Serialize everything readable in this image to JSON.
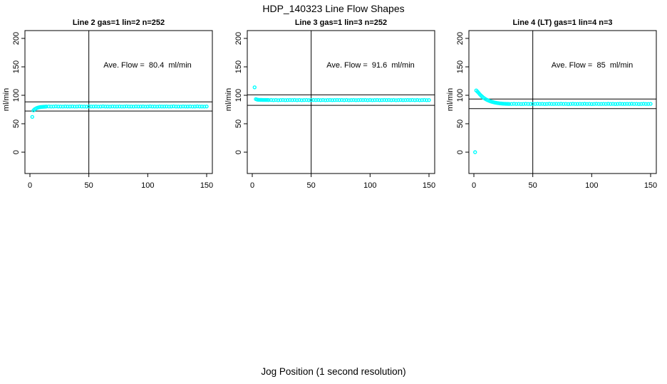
{
  "page": {
    "title": "HDP_140323  Line Flow Shapes",
    "xlabel": "Jog Position (1 second resolution)"
  },
  "colors": {
    "points": "#00FFFF",
    "axis": "#000000",
    "background": "#FFFFFF"
  },
  "chart_data": [
    {
      "type": "scatter",
      "title": "Line 2 gas=1 lin=2 n=252",
      "ylabel": "ml/min",
      "annotation": "Ave. Flow =  80.4  ml/min",
      "ave_flow_ml_min": 80.4,
      "x_ticks": [
        0,
        50,
        100,
        150
      ],
      "y_ticks": [
        0,
        50,
        100,
        150,
        200
      ],
      "xlim": [
        -4,
        155
      ],
      "ylim": [
        -37,
        212
      ],
      "vline_x": 50,
      "hlines": [
        88.4,
        72.4
      ],
      "points": [
        [
          2,
          62
        ],
        [
          3,
          73.5
        ],
        [
          4,
          75.5
        ],
        [
          5,
          76.8
        ],
        [
          6,
          77.8
        ],
        [
          7,
          78.5
        ],
        [
          8,
          79
        ],
        [
          9,
          79.4
        ],
        [
          10,
          79.6
        ],
        [
          11,
          79.8
        ],
        [
          12,
          79.9
        ],
        [
          13,
          80
        ],
        [
          14,
          80.2
        ],
        [
          16,
          80.4
        ],
        [
          18,
          80.1
        ],
        [
          20,
          80.3
        ],
        [
          22,
          80.5
        ],
        [
          24,
          80.2
        ],
        [
          26,
          80.3
        ],
        [
          28,
          80.1
        ],
        [
          30,
          80.4
        ],
        [
          32,
          80.2
        ],
        [
          34,
          80.2
        ],
        [
          36,
          80.4
        ],
        [
          38,
          80.1
        ],
        [
          40,
          80.3
        ],
        [
          42,
          80.5
        ],
        [
          44,
          80.2
        ],
        [
          46,
          80.3
        ],
        [
          48,
          80.1
        ],
        [
          50,
          80.4
        ],
        [
          52,
          80.2
        ],
        [
          54,
          80.2
        ],
        [
          56,
          80.4
        ],
        [
          58,
          80.1
        ],
        [
          60,
          80.3
        ],
        [
          62,
          80.5
        ],
        [
          64,
          80.2
        ],
        [
          66,
          80.3
        ],
        [
          68,
          80.1
        ],
        [
          70,
          80.4
        ],
        [
          72,
          80.2
        ],
        [
          74,
          80.2
        ],
        [
          76,
          80.4
        ],
        [
          78,
          80.1
        ],
        [
          80,
          80.3
        ],
        [
          82,
          80.5
        ],
        [
          84,
          80.2
        ],
        [
          86,
          80.3
        ],
        [
          88,
          80.1
        ],
        [
          90,
          80.4
        ],
        [
          92,
          80.2
        ],
        [
          94,
          80.2
        ],
        [
          96,
          80.4
        ],
        [
          98,
          80.1
        ],
        [
          100,
          80.3
        ],
        [
          102,
          80.5
        ],
        [
          104,
          80.2
        ],
        [
          106,
          80.3
        ],
        [
          108,
          80.1
        ],
        [
          110,
          80.4
        ],
        [
          112,
          80.2
        ],
        [
          114,
          80.2
        ],
        [
          116,
          80.4
        ],
        [
          118,
          80.1
        ],
        [
          120,
          80.3
        ],
        [
          122,
          80.5
        ],
        [
          124,
          80.2
        ],
        [
          126,
          80.3
        ],
        [
          128,
          80.1
        ],
        [
          130,
          80.4
        ],
        [
          132,
          80.2
        ],
        [
          134,
          80.2
        ],
        [
          136,
          80.4
        ],
        [
          138,
          80.1
        ],
        [
          140,
          80.3
        ],
        [
          142,
          80.5
        ],
        [
          144,
          80.2
        ],
        [
          146,
          80.3
        ],
        [
          148,
          80.1
        ],
        [
          150,
          80.4
        ]
      ]
    },
    {
      "type": "scatter",
      "title": "Line 3 gas=1 lin=3 n=252",
      "ylabel": "ml/min",
      "annotation": "Ave. Flow =  91.6  ml/min",
      "ave_flow_ml_min": 91.6,
      "x_ticks": [
        0,
        50,
        100,
        150
      ],
      "y_ticks": [
        0,
        50,
        100,
        150,
        200
      ],
      "xlim": [
        -4,
        155
      ],
      "ylim": [
        -37,
        212
      ],
      "vline_x": 50,
      "hlines": [
        100.8,
        82.4
      ],
      "points": [
        [
          2,
          114
        ],
        [
          3,
          93.2
        ],
        [
          4,
          92.5
        ],
        [
          5,
          92.1
        ],
        [
          6,
          92
        ],
        [
          7,
          91.9
        ],
        [
          8,
          91.9
        ],
        [
          9,
          91.8
        ],
        [
          10,
          91.8
        ],
        [
          11,
          91.7
        ],
        [
          12,
          91.7
        ],
        [
          13,
          91.7
        ],
        [
          14,
          91.6
        ],
        [
          16,
          91.8
        ],
        [
          18,
          91.5
        ],
        [
          20,
          91.7
        ],
        [
          22,
          91.4
        ],
        [
          24,
          91.6
        ],
        [
          26,
          91.8
        ],
        [
          28,
          91.5
        ],
        [
          30,
          91.6
        ],
        [
          32,
          91.7
        ],
        [
          34,
          91.6
        ],
        [
          36,
          91.8
        ],
        [
          38,
          91.5
        ],
        [
          40,
          91.7
        ],
        [
          42,
          91.4
        ],
        [
          44,
          91.6
        ],
        [
          46,
          91.8
        ],
        [
          48,
          91.5
        ],
        [
          50,
          91.6
        ],
        [
          52,
          91.7
        ],
        [
          54,
          91.6
        ],
        [
          56,
          91.8
        ],
        [
          58,
          91.5
        ],
        [
          60,
          91.7
        ],
        [
          62,
          91.4
        ],
        [
          64,
          91.6
        ],
        [
          66,
          91.8
        ],
        [
          68,
          91.5
        ],
        [
          70,
          91.6
        ],
        [
          72,
          91.7
        ],
        [
          74,
          91.6
        ],
        [
          76,
          91.8
        ],
        [
          78,
          91.5
        ],
        [
          80,
          91.7
        ],
        [
          82,
          91.4
        ],
        [
          84,
          91.6
        ],
        [
          86,
          91.8
        ],
        [
          88,
          91.5
        ],
        [
          90,
          91.6
        ],
        [
          92,
          91.7
        ],
        [
          94,
          91.6
        ],
        [
          96,
          91.8
        ],
        [
          98,
          91.5
        ],
        [
          100,
          91.7
        ],
        [
          102,
          91.4
        ],
        [
          104,
          91.6
        ],
        [
          106,
          91.8
        ],
        [
          108,
          91.5
        ],
        [
          110,
          91.6
        ],
        [
          112,
          91.7
        ],
        [
          114,
          91.6
        ],
        [
          116,
          91.8
        ],
        [
          118,
          91.5
        ],
        [
          120,
          91.7
        ],
        [
          122,
          91.4
        ],
        [
          124,
          91.6
        ],
        [
          126,
          91.8
        ],
        [
          128,
          91.5
        ],
        [
          130,
          91.6
        ],
        [
          132,
          91.7
        ],
        [
          134,
          91.6
        ],
        [
          136,
          91.8
        ],
        [
          138,
          91.5
        ],
        [
          140,
          91.7
        ],
        [
          142,
          91.4
        ],
        [
          144,
          91.6
        ],
        [
          146,
          91.8
        ],
        [
          148,
          91.5
        ],
        [
          150,
          91.6
        ]
      ]
    },
    {
      "type": "scatter",
      "title": "Line 4 (LT) gas=1 lin=4 n=3",
      "ylabel": "ml/min",
      "annotation": "Ave. Flow =  85  ml/min",
      "ave_flow_ml_min": 85,
      "x_ticks": [
        0,
        50,
        100,
        150
      ],
      "y_ticks": [
        0,
        50,
        100,
        150,
        200
      ],
      "xlim": [
        -4,
        155
      ],
      "ylim": [
        -37,
        212
      ],
      "vline_x": 50,
      "hlines": [
        93.5,
        76.5
      ],
      "points": [
        [
          1,
          0
        ],
        [
          2,
          108.5
        ],
        [
          3,
          106.5
        ],
        [
          4,
          104.2
        ],
        [
          5,
          101.8
        ],
        [
          6,
          99.6
        ],
        [
          7,
          97.7
        ],
        [
          8,
          96
        ],
        [
          9,
          94.5
        ],
        [
          10,
          93.2
        ],
        [
          11,
          92.1
        ],
        [
          12,
          91.1
        ],
        [
          13,
          90.2
        ],
        [
          14,
          89.4
        ],
        [
          15,
          88.7
        ],
        [
          16,
          88.1
        ],
        [
          17,
          87.6
        ],
        [
          18,
          87.1
        ],
        [
          19,
          86.7
        ],
        [
          20,
          86.4
        ],
        [
          21,
          86.1
        ],
        [
          22,
          85.8
        ],
        [
          23,
          85.6
        ],
        [
          24,
          85.4
        ],
        [
          25,
          85.3
        ],
        [
          26,
          85.1
        ],
        [
          27,
          85
        ],
        [
          28,
          84.9
        ],
        [
          29,
          84.9
        ],
        [
          30,
          84.8
        ],
        [
          32,
          84.8
        ],
        [
          34,
          85
        ],
        [
          36,
          84.7
        ],
        [
          38,
          84.9
        ],
        [
          40,
          84.6
        ],
        [
          42,
          84.8
        ],
        [
          44,
          85
        ],
        [
          46,
          84.7
        ],
        [
          48,
          84.8
        ],
        [
          50,
          84.9
        ],
        [
          52,
          84.8
        ],
        [
          54,
          85
        ],
        [
          56,
          84.7
        ],
        [
          58,
          84.9
        ],
        [
          60,
          84.6
        ],
        [
          62,
          84.8
        ],
        [
          64,
          85
        ],
        [
          66,
          84.7
        ],
        [
          68,
          84.8
        ],
        [
          70,
          84.9
        ],
        [
          72,
          84.8
        ],
        [
          74,
          85
        ],
        [
          76,
          84.7
        ],
        [
          78,
          84.9
        ],
        [
          80,
          84.6
        ],
        [
          82,
          84.8
        ],
        [
          84,
          85
        ],
        [
          86,
          84.7
        ],
        [
          88,
          84.8
        ],
        [
          90,
          84.9
        ],
        [
          92,
          84.8
        ],
        [
          94,
          85
        ],
        [
          96,
          84.7
        ],
        [
          98,
          84.9
        ],
        [
          100,
          84.6
        ],
        [
          102,
          84.8
        ],
        [
          104,
          85
        ],
        [
          106,
          84.7
        ],
        [
          108,
          84.8
        ],
        [
          110,
          84.9
        ],
        [
          112,
          84.8
        ],
        [
          114,
          85
        ],
        [
          116,
          84.7
        ],
        [
          118,
          84.9
        ],
        [
          120,
          84.6
        ],
        [
          122,
          84.8
        ],
        [
          124,
          85
        ],
        [
          126,
          84.7
        ],
        [
          128,
          84.8
        ],
        [
          130,
          84.9
        ],
        [
          132,
          84.8
        ],
        [
          134,
          85
        ],
        [
          136,
          84.7
        ],
        [
          138,
          84.9
        ],
        [
          140,
          84.6
        ],
        [
          142,
          84.8
        ],
        [
          144,
          85
        ],
        [
          146,
          84.7
        ],
        [
          148,
          84.8
        ],
        [
          150,
          84.9
        ]
      ]
    }
  ]
}
